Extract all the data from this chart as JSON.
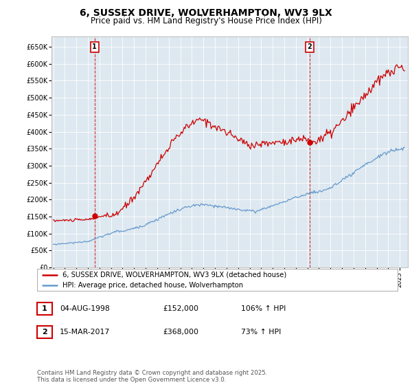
{
  "title": "6, SUSSEX DRIVE, WOLVERHAMPTON, WV3 9LX",
  "subtitle": "Price paid vs. HM Land Registry's House Price Index (HPI)",
  "background_color": "#ffffff",
  "plot_background": "#dde8f0",
  "grid_color": "#ffffff",
  "ylim": [
    0,
    680000
  ],
  "yticks": [
    0,
    50000,
    100000,
    150000,
    200000,
    250000,
    300000,
    350000,
    400000,
    450000,
    500000,
    550000,
    600000,
    650000
  ],
  "ytick_labels": [
    "£0",
    "£50K",
    "£100K",
    "£150K",
    "£200K",
    "£250K",
    "£300K",
    "£350K",
    "£400K",
    "£450K",
    "£500K",
    "£550K",
    "£600K",
    "£650K"
  ],
  "purchase1_date": 1998.58,
  "purchase1_price": 152000,
  "purchase1_label": "1",
  "purchase2_date": 2017.2,
  "purchase2_price": 368000,
  "purchase2_label": "2",
  "red_line_color": "#cc0000",
  "blue_line_color": "#6699cc",
  "dashed_line_color": "#cc0000",
  "legend_label_red": "6, SUSSEX DRIVE, WOLVERHAMPTON, WV3 9LX (detached house)",
  "legend_label_blue": "HPI: Average price, detached house, Wolverhampton",
  "table_row1": [
    "1",
    "04-AUG-1998",
    "£152,000",
    "106% ↑ HPI"
  ],
  "table_row2": [
    "2",
    "15-MAR-2017",
    "£368,000",
    "73% ↑ HPI"
  ],
  "footnote": "Contains HM Land Registry data © Crown copyright and database right 2025.\nThis data is licensed under the Open Government Licence v3.0.",
  "title_fontsize": 10,
  "subtitle_fontsize": 8.5
}
